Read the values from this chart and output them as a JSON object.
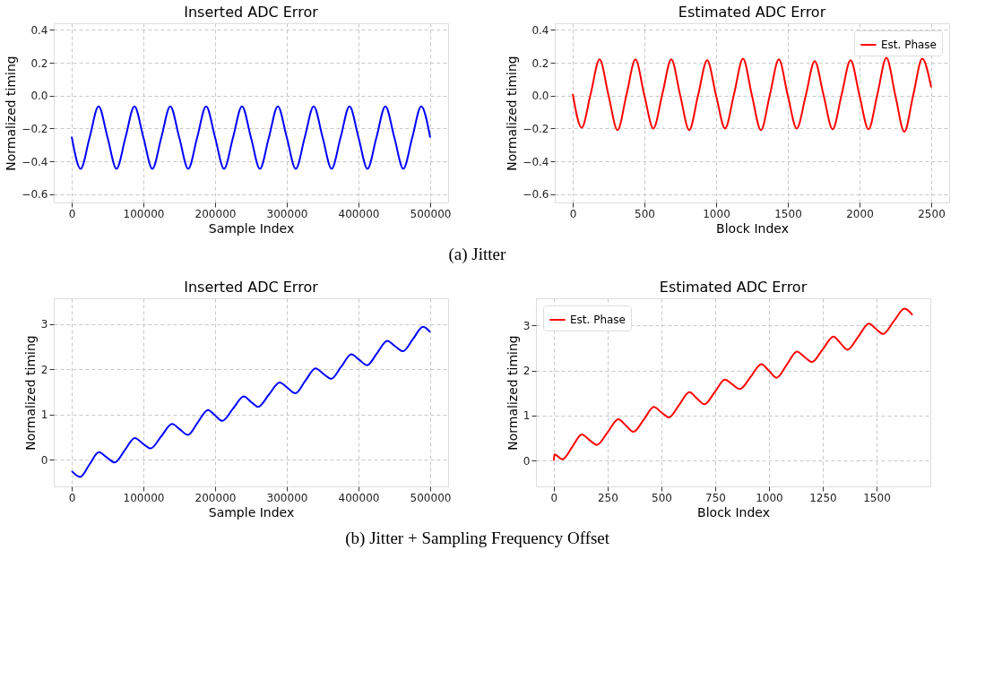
{
  "chart_data": [
    {
      "type": "line",
      "title": "Inserted ADC Error",
      "xlabel": "Sample Index",
      "ylabel": "Normalized timing",
      "annotations": [
        "(a) Jitter"
      ],
      "xlim": [
        -25000,
        525000
      ],
      "ylim": [
        -0.65,
        0.44
      ],
      "xticks": [
        0,
        100000,
        200000,
        300000,
        400000,
        500000
      ],
      "yticks": [
        -0.6,
        -0.4,
        -0.2,
        {
          "value": 0,
          "label": "0.0"
        },
        0.2,
        0.4
      ],
      "grid": true,
      "legend": false,
      "marker": "none",
      "line_style": "solid",
      "series": [
        {
          "color": "#0000ff",
          "x": [
            0,
            12500,
            25000,
            37500,
            50000,
            62500,
            75000,
            87500,
            100000,
            112500,
            125000,
            137500,
            150000,
            162500,
            175000,
            187500,
            200000,
            212500,
            225000,
            237500,
            250000,
            262500,
            275000,
            287500,
            300000,
            312500,
            325000,
            337500,
            350000,
            362500,
            375000,
            387500,
            400000,
            412500,
            425000,
            437500,
            450000,
            462500,
            475000,
            487500,
            500000
          ],
          "values": [
            -0.25,
            -0.445,
            -0.255,
            -0.065,
            -0.255,
            -0.445,
            -0.255,
            -0.065,
            -0.255,
            -0.445,
            -0.255,
            -0.065,
            -0.255,
            -0.445,
            -0.255,
            -0.065,
            -0.255,
            -0.445,
            -0.255,
            -0.065,
            -0.255,
            -0.445,
            -0.255,
            -0.065,
            -0.255,
            -0.445,
            -0.255,
            -0.065,
            -0.255,
            -0.445,
            -0.255,
            -0.065,
            -0.255,
            -0.445,
            -0.255,
            -0.065,
            -0.255,
            -0.445,
            -0.255,
            -0.065,
            -0.255
          ]
        }
      ]
    },
    {
      "type": "line",
      "title": "Estimated ADC Error",
      "xlabel": "Block Index",
      "ylabel": "Normalized timing",
      "xlim": [
        -125,
        2625
      ],
      "ylim": [
        -0.65,
        0.44
      ],
      "xticks": [
        0,
        500,
        1000,
        1500,
        2000,
        2500
      ],
      "yticks": [
        -0.6,
        -0.4,
        -0.2,
        {
          "value": 0,
          "label": "0.0"
        },
        0.2,
        0.4
      ],
      "grid": true,
      "legend": "top right",
      "marker": "none",
      "line_style": "solid",
      "series": [
        {
          "name": "Est. Phase",
          "color": "#ff0000",
          "x": [
            0,
            62.5,
            125,
            187.5,
            250,
            312.5,
            375,
            437.5,
            500,
            562.5,
            625,
            687.5,
            750,
            812.5,
            875,
            937.5,
            1000,
            1062.5,
            1125,
            1187.5,
            1250,
            1312.5,
            1375,
            1437.5,
            1500,
            1562.5,
            1625,
            1687.5,
            1750,
            1812.5,
            1875,
            1937.5,
            2000,
            2062.5,
            2125,
            2187.5,
            2250,
            2312.5,
            2375,
            2437.5,
            2500
          ],
          "values": [
            0.01,
            -0.195,
            0.01,
            0.22,
            0.0,
            -0.21,
            0.005,
            0.22,
            0.0,
            -0.2,
            0.01,
            0.22,
            0.0,
            -0.21,
            0.005,
            0.215,
            0.0,
            -0.2,
            0.01,
            0.225,
            0.0,
            -0.21,
            0.005,
            0.22,
            0.0,
            -0.2,
            0.0,
            0.21,
            0.0,
            -0.205,
            0.005,
            0.215,
            0.0,
            -0.205,
            0.01,
            0.23,
            0.0,
            -0.22,
            0.005,
            0.225,
            0.05
          ]
        }
      ]
    },
    {
      "type": "line",
      "title": "Inserted ADC Error",
      "xlabel": "Sample Index",
      "ylabel": "Normalized timing",
      "annotations": [
        "(b) Jitter + Sampling Frequency Offset"
      ],
      "xlim": [
        -25000,
        525000
      ],
      "ylim": [
        -0.59,
        3.57
      ],
      "xticks": [
        0,
        100000,
        200000,
        300000,
        400000,
        500000
      ],
      "yticks": [
        0,
        1,
        2,
        3
      ],
      "grid": true,
      "legend": false,
      "marker": "none",
      "line_style": "solid",
      "series": [
        {
          "color": "#0000ff",
          "x": [
            0,
            12000,
            25000,
            38000,
            49000,
            60000,
            74000,
            88000,
            99000,
            110000,
            125000,
            140000,
            151000,
            162000,
            176000,
            190000,
            200000,
            210000,
            225000,
            240000,
            250000,
            260000,
            275000,
            290000,
            301000,
            312000,
            326000,
            340000,
            351000,
            362000,
            376000,
            390000,
            401000,
            412000,
            426000,
            440000,
            451000,
            462000,
            476000,
            490000,
            500000
          ],
          "values": [
            -0.25,
            -0.38,
            -0.1,
            0.17,
            0.05,
            -0.06,
            0.21,
            0.48,
            0.36,
            0.25,
            0.52,
            0.79,
            0.67,
            0.55,
            0.83,
            1.1,
            0.98,
            0.86,
            1.13,
            1.4,
            1.28,
            1.17,
            1.44,
            1.71,
            1.59,
            1.47,
            1.75,
            2.02,
            1.9,
            1.79,
            2.06,
            2.33,
            2.21,
            2.09,
            2.36,
            2.63,
            2.51,
            2.4,
            2.67,
            2.94,
            2.82
          ]
        }
      ]
    },
    {
      "type": "line",
      "title": "Estimated ADC Error",
      "xlabel": "Block Index",
      "ylabel": "Normalized timing",
      "xlim": [
        -83,
        1750
      ],
      "ylim": [
        -0.57,
        3.6
      ],
      "xticks": [
        0,
        250,
        500,
        750,
        1000,
        1250,
        1500
      ],
      "yticks": [
        0,
        1,
        2,
        3
      ],
      "grid": true,
      "legend": "top left",
      "marker": "none",
      "line_style": "solid",
      "series": [
        {
          "name": "Est. Phase",
          "color": "#ff0000",
          "x": [
            0,
            3,
            40,
            85,
            130,
            165,
            200,
            250,
            300,
            335,
            370,
            418,
            465,
            500,
            535,
            583,
            630,
            665,
            700,
            748,
            795,
            830,
            865,
            915,
            965,
            1000,
            1035,
            1083,
            1130,
            1165,
            1200,
            1250,
            1300,
            1333,
            1365,
            1415,
            1465,
            1498,
            1530,
            1580,
            1630,
            1667
          ],
          "values": [
            0,
            0.14,
            0.03,
            0.3,
            0.58,
            0.46,
            0.35,
            0.63,
            0.92,
            0.78,
            0.64,
            0.91,
            1.19,
            1.07,
            0.96,
            1.24,
            1.52,
            1.38,
            1.25,
            1.52,
            1.8,
            1.69,
            1.59,
            1.86,
            2.14,
            1.99,
            1.84,
            2.13,
            2.42,
            2.3,
            2.19,
            2.47,
            2.75,
            2.6,
            2.46,
            2.75,
            3.04,
            2.92,
            2.81,
            3.09,
            3.37,
            3.23
          ]
        }
      ]
    }
  ]
}
